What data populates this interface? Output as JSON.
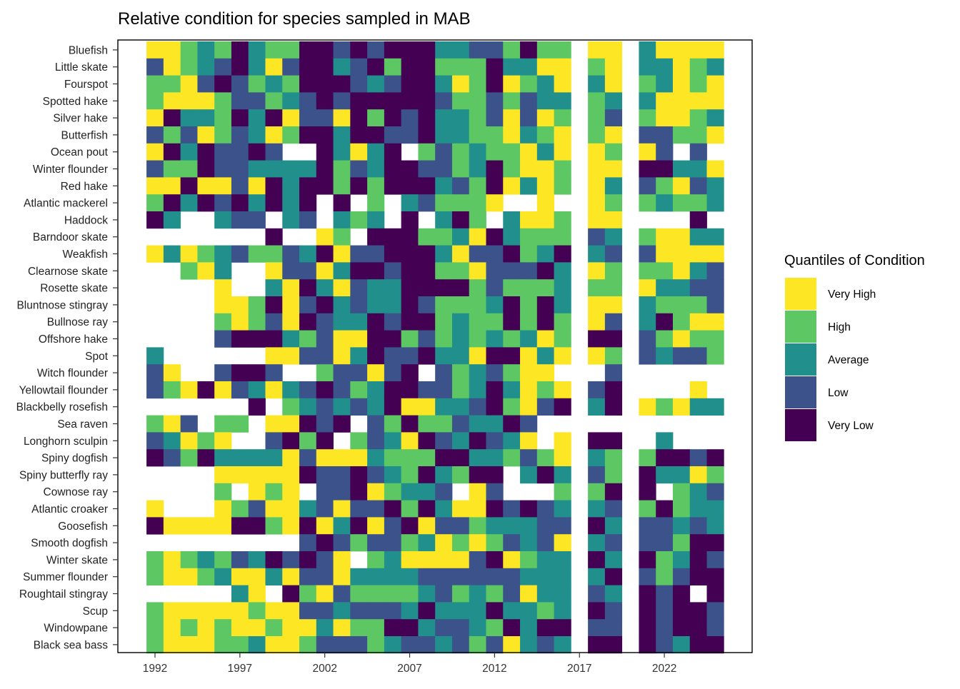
{
  "chart_data": {
    "type": "heatmap",
    "title": "Relative condition for species sampled in MAB",
    "xlabel": "",
    "ylabel": "",
    "x_years": [
      1992,
      1993,
      1994,
      1995,
      1996,
      1997,
      1998,
      1999,
      2000,
      2001,
      2002,
      2003,
      2004,
      2005,
      2006,
      2007,
      2008,
      2009,
      2010,
      2011,
      2012,
      2013,
      2014,
      2015,
      2016,
      2017,
      2018,
      2019,
      2020,
      2021,
      2022,
      2023,
      2024,
      2025
    ],
    "x_ticks": [
      "1992",
      "1997",
      "2002",
      "2007",
      "2012",
      "2017",
      "2022"
    ],
    "legend": {
      "title": "Quantiles of Condition",
      "placement": "right",
      "entries": [
        {
          "code": "4",
          "label": "Very High",
          "color": "#FDE725"
        },
        {
          "code": "3",
          "label": "High",
          "color": "#5DC863"
        },
        {
          "code": "2",
          "label": "Average",
          "color": "#21908C"
        },
        {
          "code": "1",
          "label": "Low",
          "color": "#3B528B"
        },
        {
          "code": "0",
          "label": "Very Low",
          "color": "#440154"
        }
      ]
    },
    "encoding_note_missing": ".",
    "species": [
      {
        "name": "Bluefish",
        "values": "4432302330010100022113033.44.24444"
      },
      {
        "name": "Little skate",
        "values": "1432102410021030033302244.34.22432"
      },
      {
        "name": "Fourspot",
        "values": "3341013230001210024304324.24.32434"
      },
      {
        "name": "Spotted hake",
        "values": "3444311321010000013313122.32.24444"
      },
      {
        "name": "Silver hake",
        "values": "4022302041140301022314143.31.34432"
      },
      {
        "name": "Butterfish",
        "values": "1314312430020011022334234.34.11334"
      },
      {
        "name": "Ocean pout",
        "values": "40201101..02420.313233424.43.41.1."
      },
      {
        "name": "Winter flounder",
        "values": "1330112222031200113203443.44.00224"
      },
      {
        "name": "Red hake",
        "values": "4404414020030300021304243.42.13412"
      },
      {
        "name": "Atlantic mackerel",
        "values": "3020102020.0.3.213334..4..43.32332"
      },
      {
        "name": "Haddock",
        "values": "02..211.21.232.0.203.2443.44....0."
      },
      {
        "name": "Barndoor skate",
        "values": ".......0..43.000332402333.12.34422"
      },
      {
        "name": "Weakfish",
        "values": "4243213312041100024110320.21.14444"
      },
      {
        "name": "Clearnose skate",
        "values": "..342..411420010033411102.43.33421"
      },
      {
        "name": "Rosette skate",
        "values": "....4..240241220000313332.33.42211"
      },
      {
        "name": "Bluntnose stingray",
        "values": "....443041021220133320302.44.23331"
      },
      {
        "name": "Bullnose ray",
        "values": "....343140122010032330303.41.20344"
      },
      {
        "name": "Offshore hake",
        "values": "....100023144003132323243.00.13433"
      },
      {
        "name": "Spot",
        "values": "2......441142011022400424.43.12113"
      },
      {
        "name": "Witch flounder",
        "values": "14..1001..311410.1321344...1......"
      },
      {
        "name": "Yellowtail flounder",
        "values": "1340412421013200113202434.10....4."
      },
      {
        "name": "Blackbelly rosefish",
        "values": "......0.32121204422103410.20.43422"
      },
      {
        "name": "Sea raven",
        "values": "341.33.44010.1303312201..........."
      },
      {
        "name": "Longhorn sculpin",
        "values": "12434..1030.31240120124.4.00..2..."
      },
      {
        "name": "Spiny dogfish",
        "values": "0130222241444233300223134.23.30010"
      },
      {
        "name": "Spiny butterfly ray",
        "values": "....44444011012302300.202.13.02243"
      },
      {
        "name": "Cownose ray",
        "values": "....3.434.11043221.41...3.30.0.321"
      },
      {
        "name": "Atlantic croaker",
        "values": "4...431442141103024401012.21.30322"
      },
      {
        "name": "Goosefish",
        "values": "0444400340420410411322211.02.11212"
      },
      {
        "name": "Smooth dogfish",
        "values": ".........1013113243431214.21.11300"
      },
      {
        "name": "Winter skate",
        "values": "343231201014.324444104322.02.03201"
      },
      {
        "name": "Summer flounder",
        "values": "3443244241142222111111222.20.13100"
      },
      {
        "name": "Roughtail stingray",
        "values": ".....24.03413333213231422.12.010.0"
      },
      {
        "name": "Scup",
        "values": "3444443441121112022202232.01.01001"
      },
      {
        "name": "Windowpane",
        "values": "3434344344243300211230200.11.01001"
      },
      {
        "name": "Black sea bass",
        "values": "3444332443111321121314212.00.01200"
      }
    ]
  }
}
